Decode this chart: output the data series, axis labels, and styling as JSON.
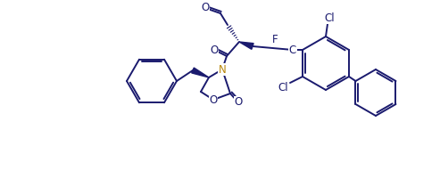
{
  "bg_color": "#ffffff",
  "lc": "#1a1a6e",
  "N_color": "#b8860b",
  "O_color": "#1a1a6e",
  "F_color": "#1a1a6e",
  "Cl_color": "#1a1a6e",
  "C_color": "#1a1a6e",
  "lw": 1.4,
  "figsize": [
    4.93,
    2.19
  ],
  "dpi": 100,
  "xlim": [
    0,
    493
  ],
  "ylim": [
    0,
    219
  ]
}
